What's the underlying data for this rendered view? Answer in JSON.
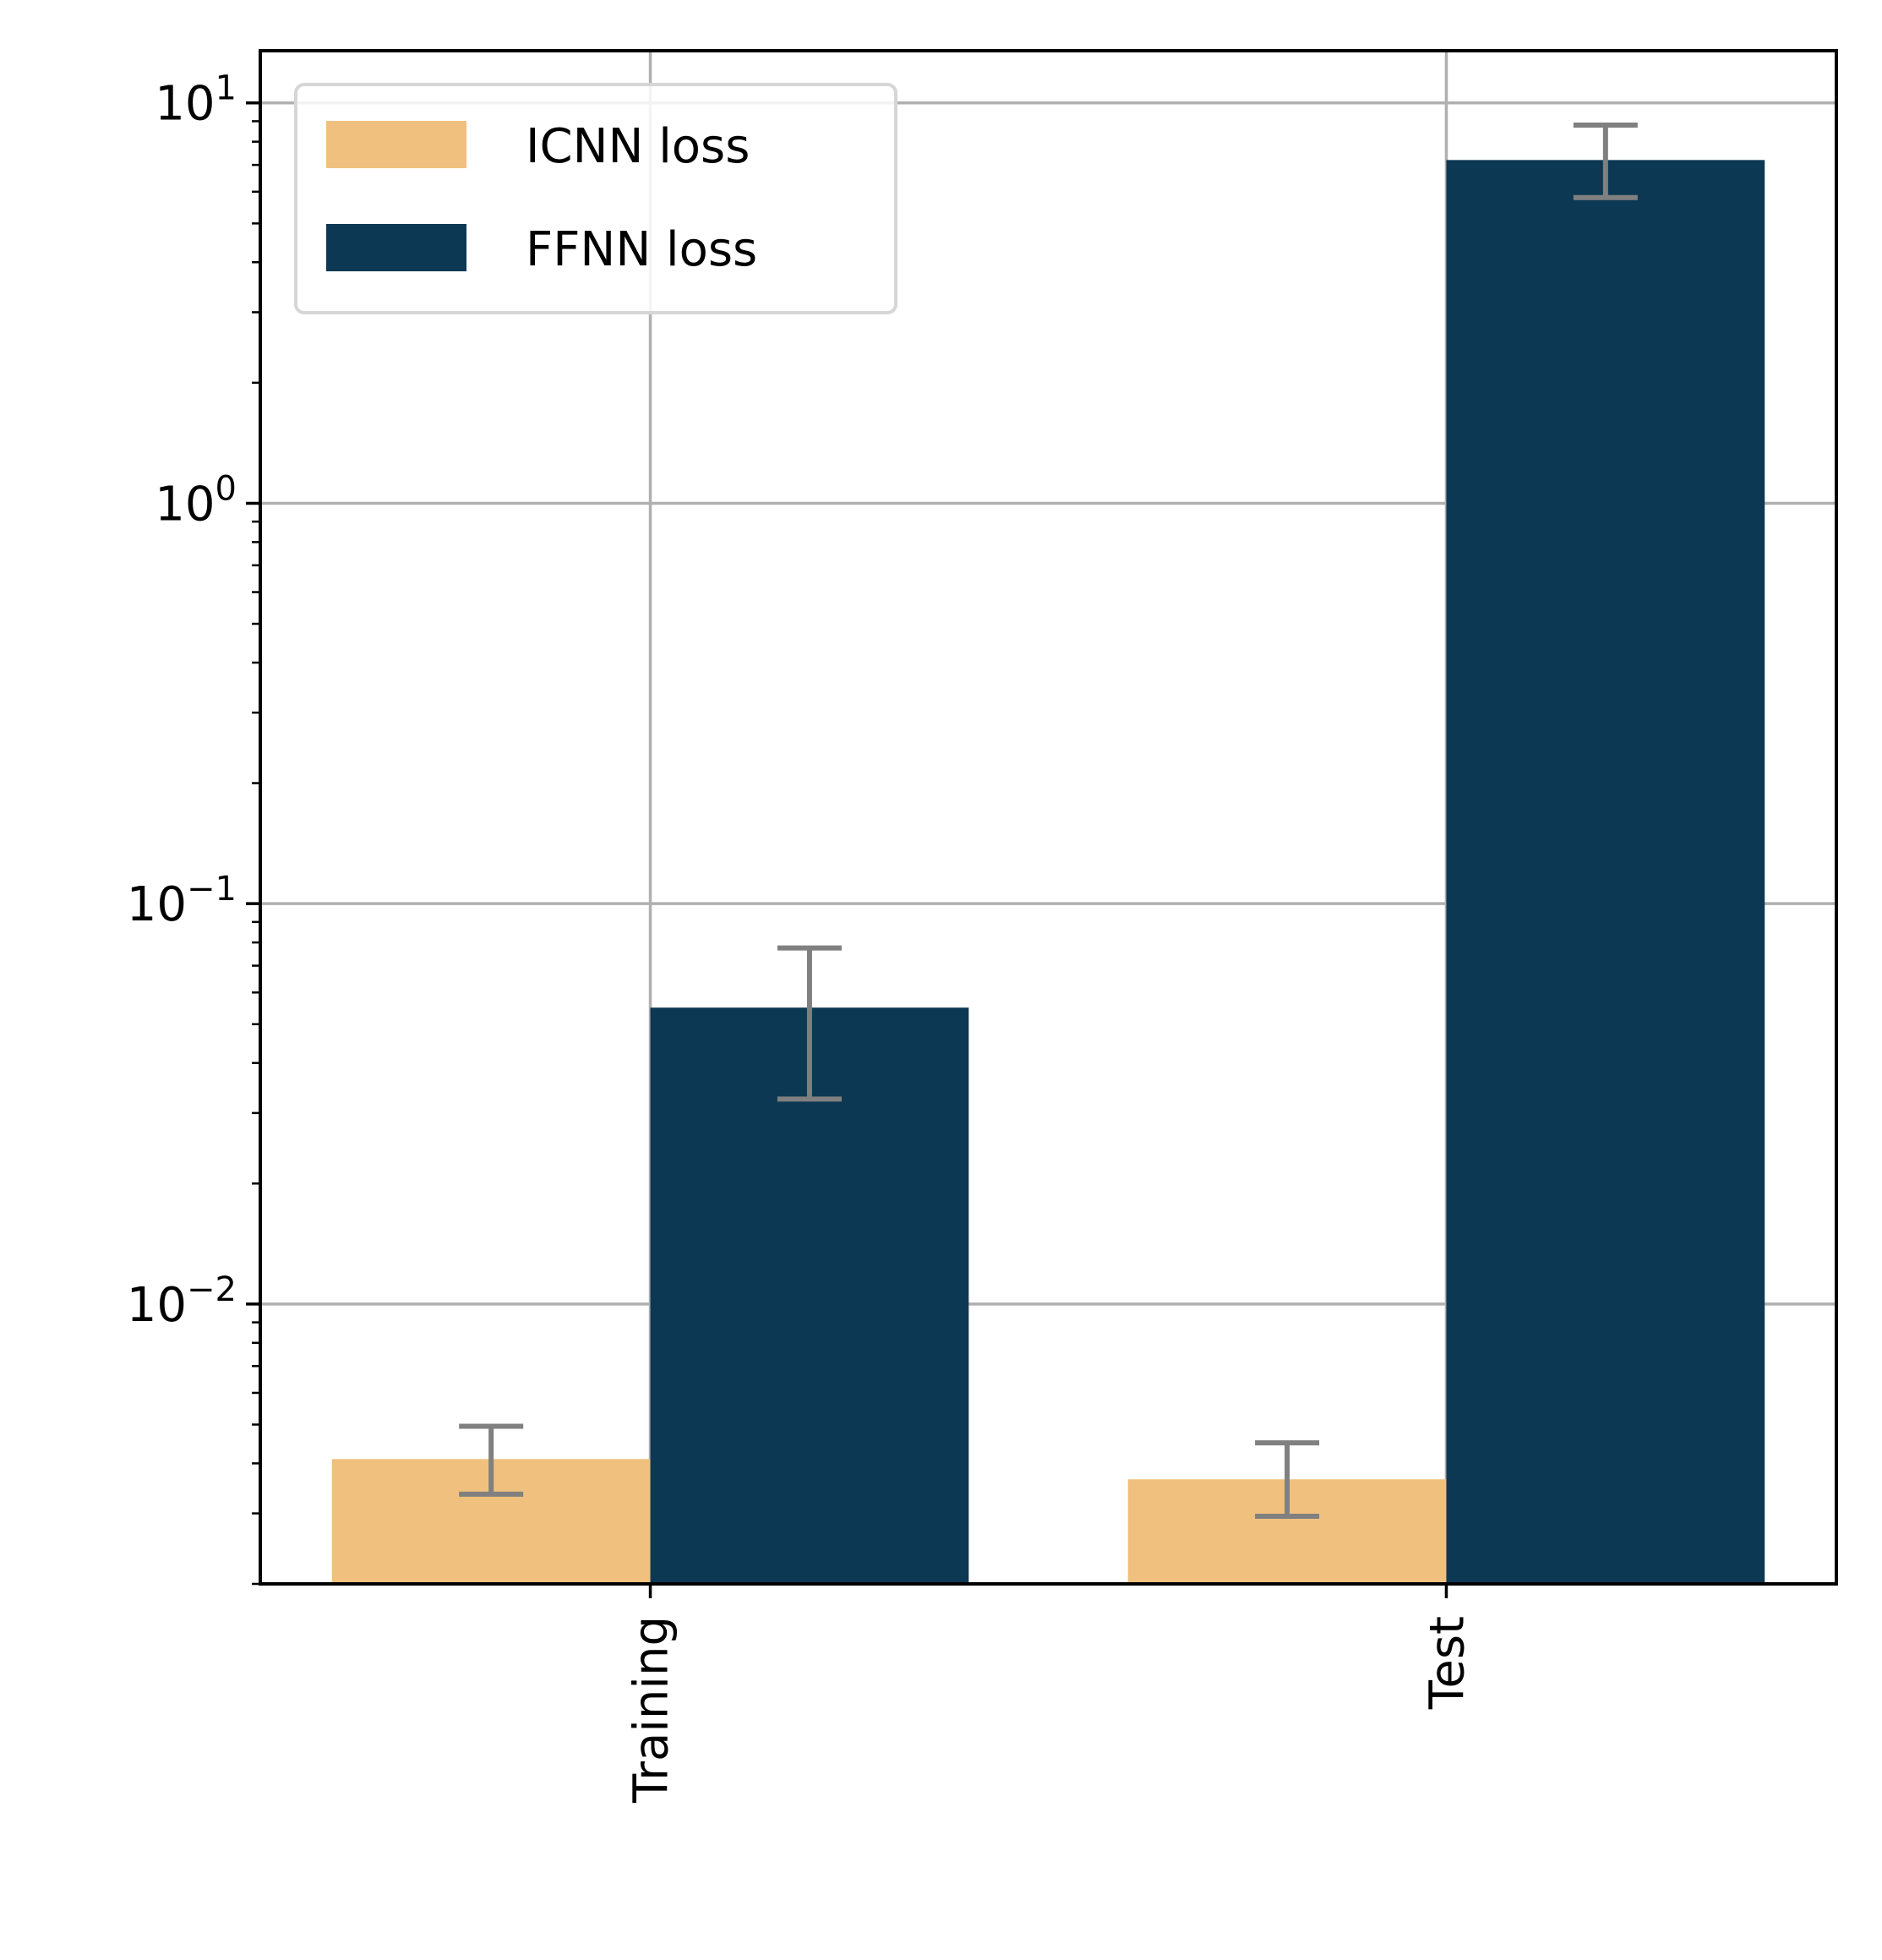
{
  "chart_data": {
    "type": "bar",
    "title": "",
    "xlabel": "",
    "ylabel": "",
    "yscale": "log",
    "ylim": [
      0.002,
      13.5
    ],
    "grid": true,
    "legend_position": "top-left",
    "categories": [
      "Training",
      "Test"
    ],
    "series": [
      {
        "name": "ICNN loss",
        "color": "#f0c17e",
        "values": [
          0.0041,
          0.00365
        ],
        "error_low": [
          0.00335,
          0.00295
        ],
        "error_high": [
          0.00495,
          0.0045
        ]
      },
      {
        "name": "FFNN loss",
        "color": "#0d3853",
        "values": [
          0.055,
          7.2
        ],
        "error_low": [
          0.0325,
          5.8
        ],
        "error_high": [
          0.0775,
          8.8
        ]
      }
    ],
    "errorbar_color": "#808080",
    "yticks": [
      {
        "value": 10,
        "base": "10",
        "exp": "1"
      },
      {
        "value": 1,
        "base": "10",
        "exp": "0"
      },
      {
        "value": 0.1,
        "base": "10",
        "exp": "−1"
      },
      {
        "value": 0.01,
        "base": "10",
        "exp": "−2"
      }
    ]
  }
}
